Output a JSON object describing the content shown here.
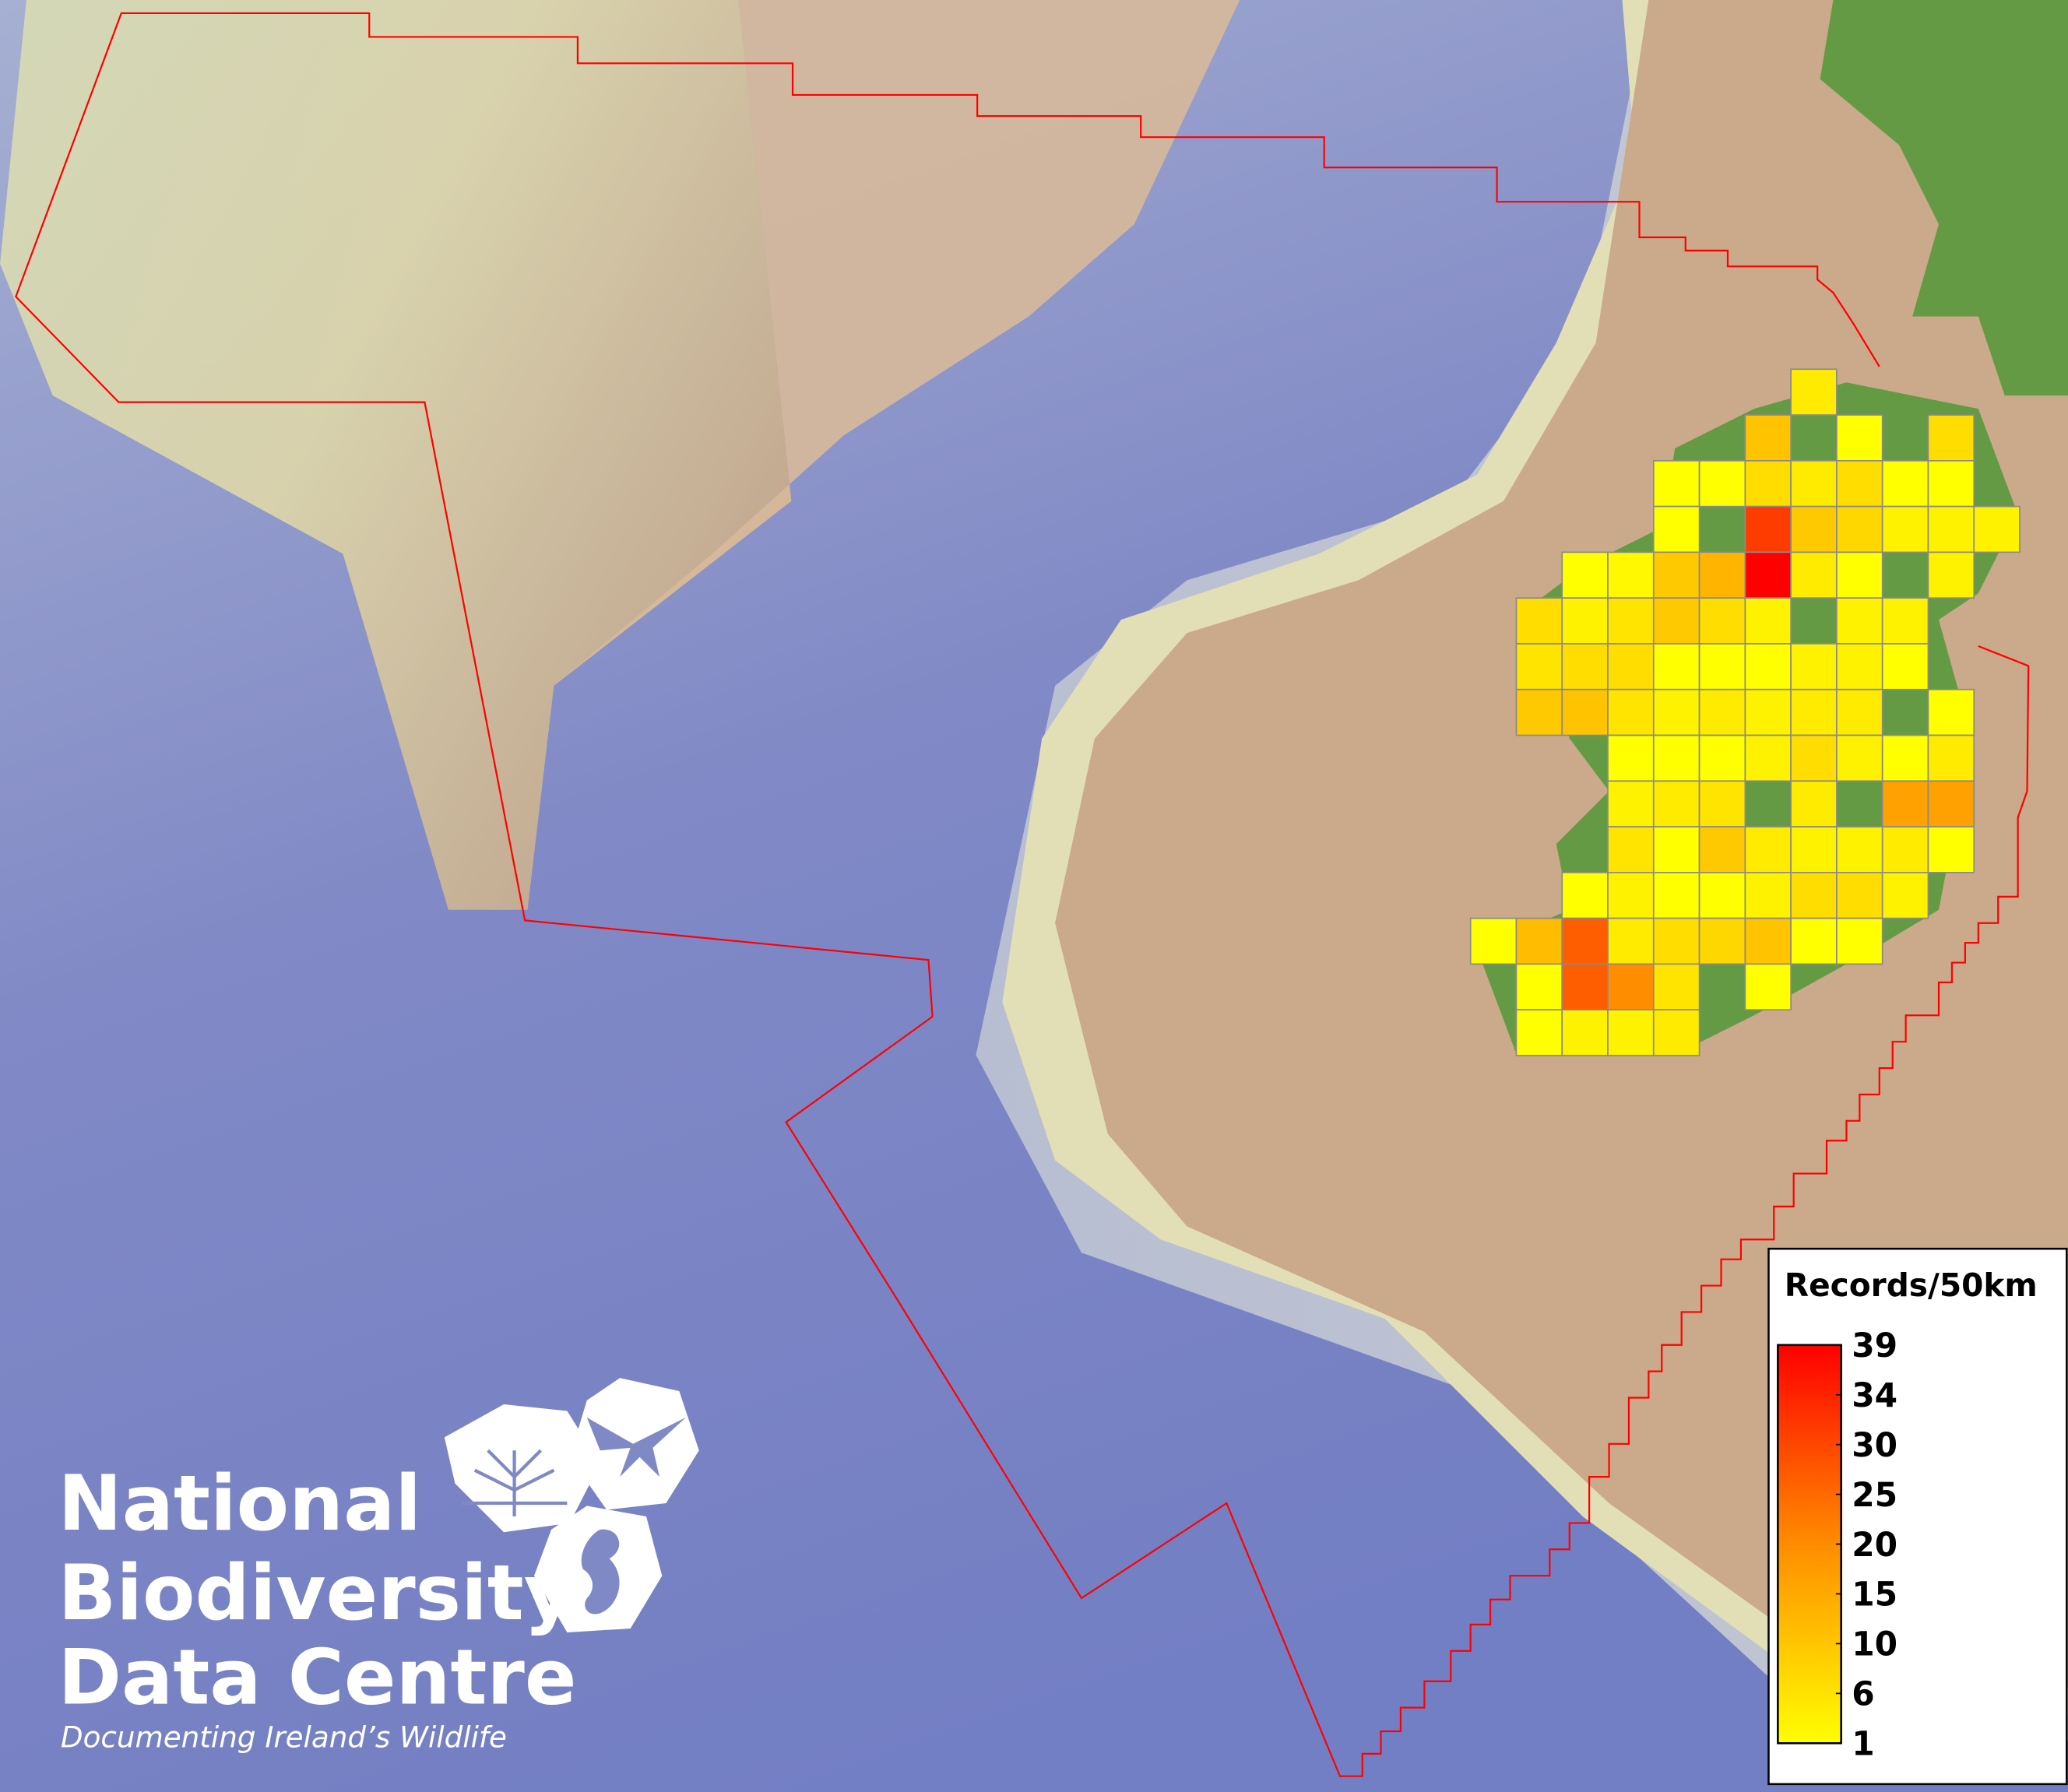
{
  "map": {
    "boundary_color": "#ff0000",
    "land_color": "#cba98b",
    "ireland_land_color": "#659a45",
    "ocean_color": "#7a84c6",
    "grid_border_color": "#8a8a8a"
  },
  "grid": {
    "cell_label": "50km",
    "rows": [
      [
        null,
        null,
        null,
        null,
        null,
        null,
        null,
        4,
        null,
        null,
        null,
        null
      ],
      [
        null,
        null,
        null,
        null,
        null,
        null,
        10,
        null,
        1,
        null,
        6,
        null
      ],
      [
        null,
        null,
        null,
        null,
        1,
        1,
        6,
        4,
        6,
        1,
        1,
        null
      ],
      [
        null,
        null,
        null,
        null,
        1,
        null,
        30,
        9,
        7,
        3,
        3,
        3
      ],
      [
        null,
        null,
        1,
        2,
        9,
        12,
        39,
        4,
        1,
        null,
        3,
        null
      ],
      [
        null,
        6,
        3,
        5,
        9,
        6,
        3,
        null,
        3,
        3,
        null,
        null
      ],
      [
        null,
        5,
        6,
        6,
        1,
        1,
        1,
        3,
        3,
        1,
        null,
        null
      ],
      [
        null,
        9,
        10,
        5,
        3,
        4,
        3,
        4,
        4,
        null,
        1,
        null
      ],
      [
        null,
        null,
        null,
        1,
        1,
        1,
        3,
        6,
        3,
        1,
        4,
        null
      ],
      [
        null,
        null,
        null,
        3,
        4,
        5,
        null,
        4,
        null,
        15,
        15,
        null
      ],
      [
        null,
        null,
        null,
        5,
        1,
        9,
        4,
        3,
        3,
        4,
        1,
        null
      ],
      [
        null,
        null,
        1,
        3,
        1,
        1,
        3,
        6,
        6,
        3,
        null,
        null
      ],
      [
        1,
        11,
        25,
        4,
        6,
        7,
        10,
        1,
        1,
        null,
        null,
        null
      ],
      [
        null,
        1,
        25,
        18,
        5,
        null,
        1,
        null,
        null,
        null,
        null,
        null
      ],
      [
        null,
        1,
        3,
        3,
        4,
        null,
        null,
        null,
        null,
        null,
        null,
        null
      ]
    ]
  },
  "legend": {
    "title": "Records/50km",
    "min": 1,
    "max": 39,
    "color_low": "#ffff00",
    "color_high": "#ff0000",
    "ticks": [
      "39",
      "34",
      "30",
      "25",
      "20",
      "15",
      "10",
      "6",
      "1"
    ]
  },
  "logo": {
    "line1": "National",
    "line2": "Biodiversity",
    "line3": "Data Centre",
    "tagline": "Documenting Ireland’s Wildlife"
  }
}
